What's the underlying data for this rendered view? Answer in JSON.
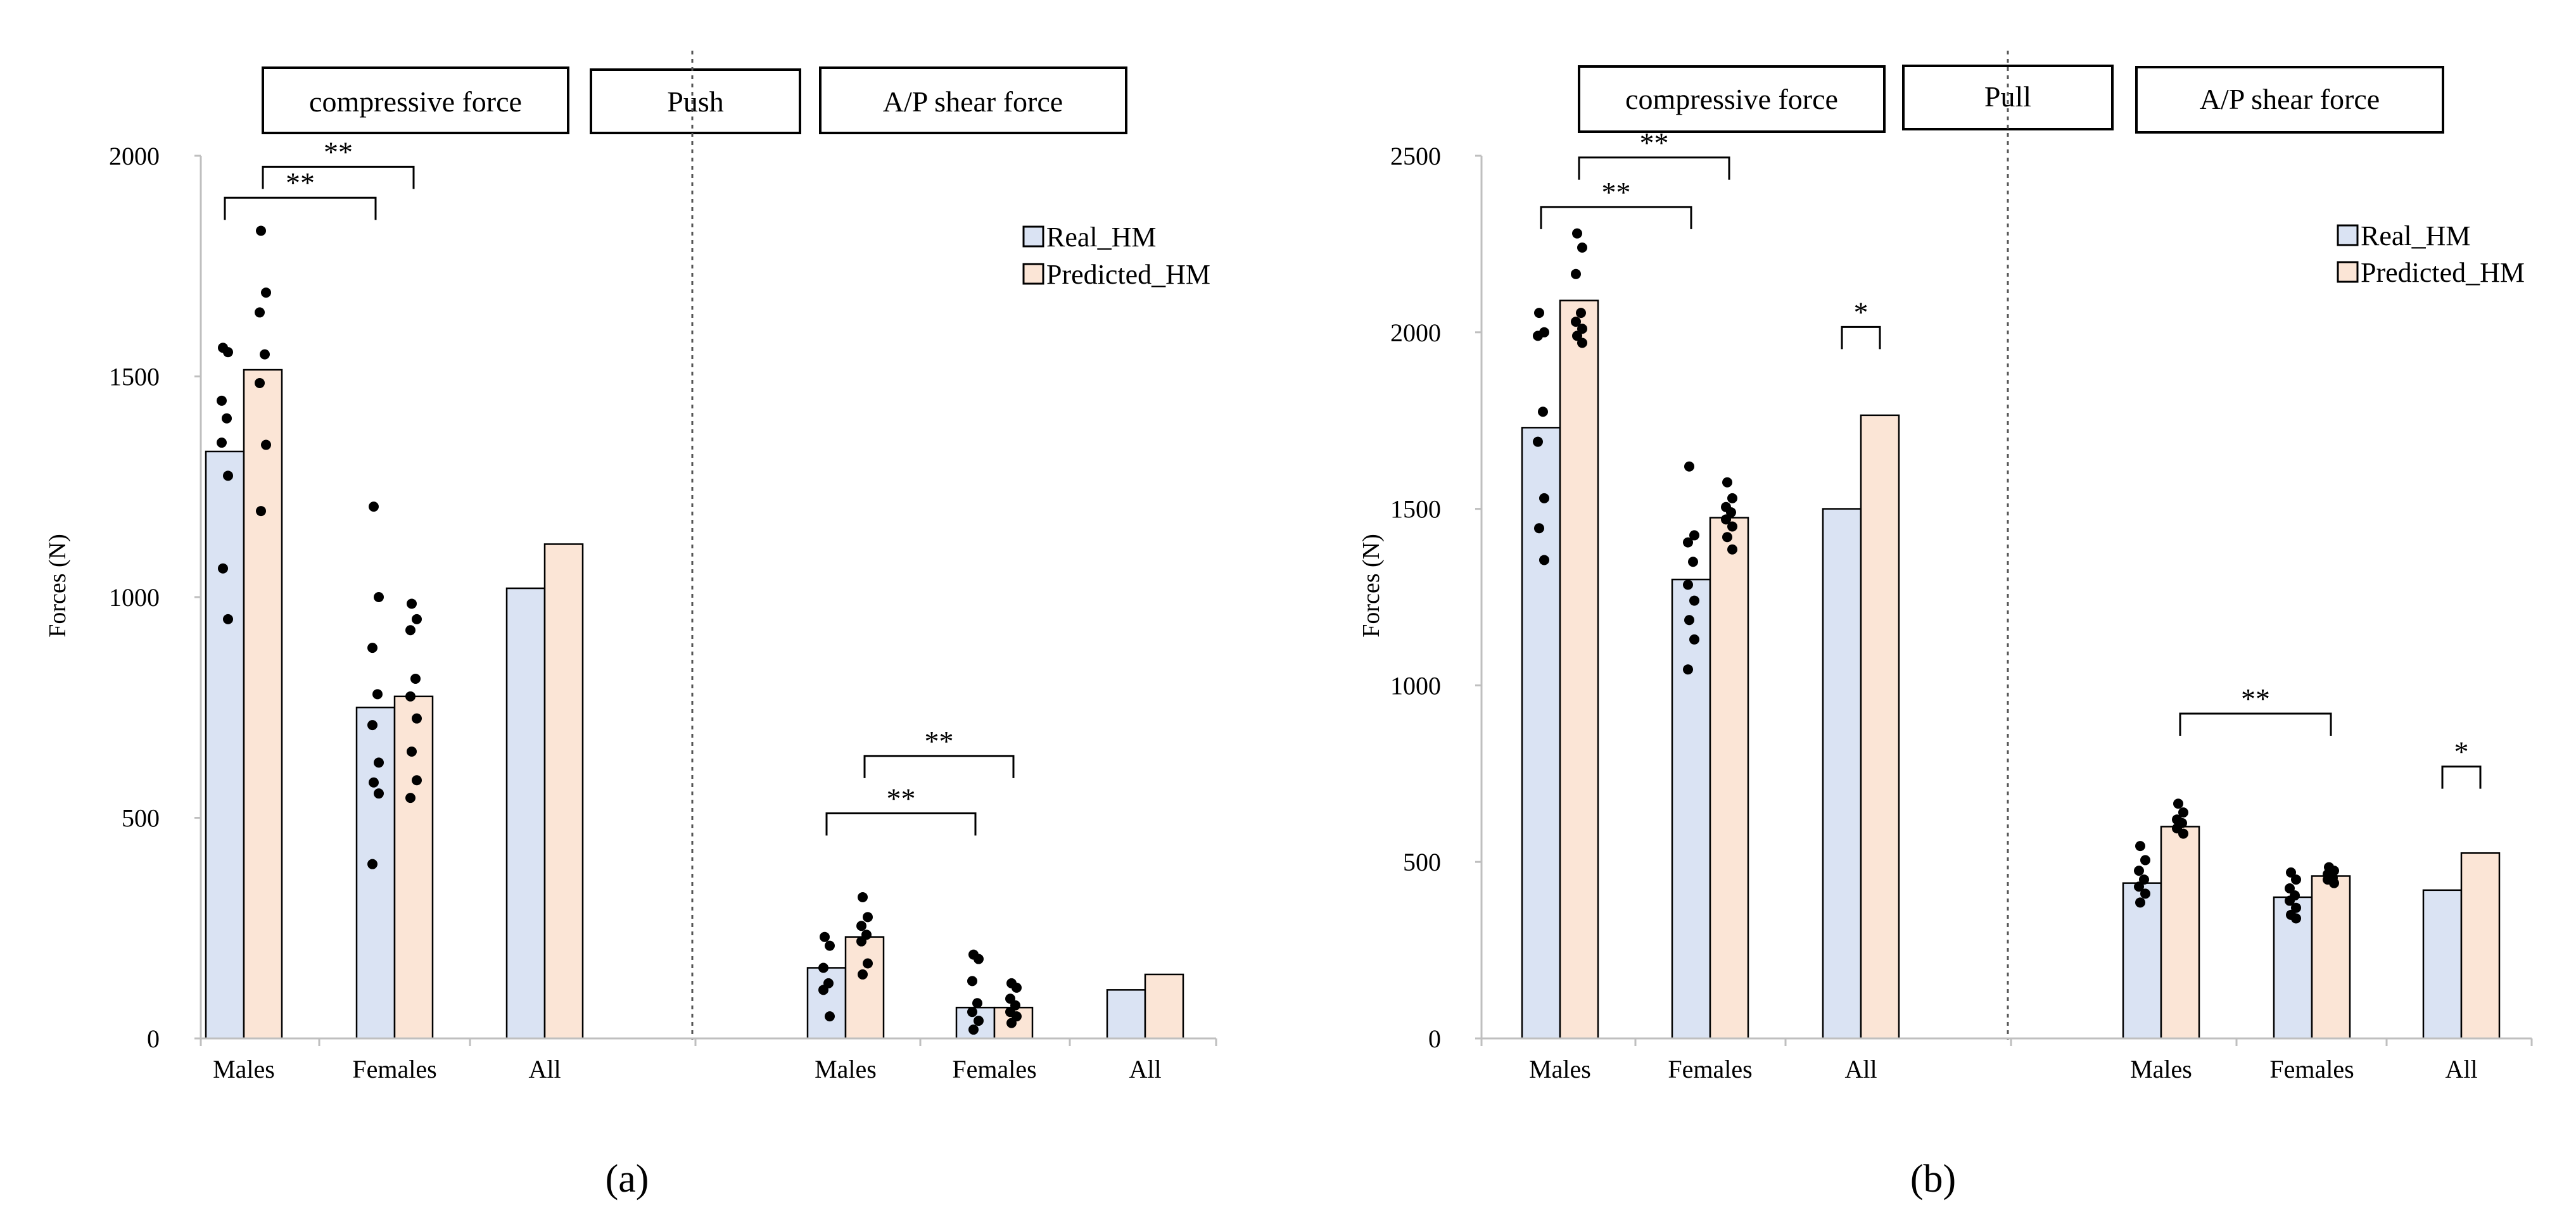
{
  "colors": {
    "real": "#dae3f3",
    "predicted": "#fbe5d6",
    "bar_stroke": "#000000",
    "dot": "#000000",
    "axis": "#bfbfbf"
  },
  "legend": [
    "Real_HM",
    "Predicted_HM"
  ],
  "chart_data": [
    {
      "type": "bar",
      "panel_label": "(a)",
      "ylabel": "Forces (N)",
      "ylim": [
        0,
        2000
      ],
      "yticks": [
        0,
        500,
        1000,
        1500,
        2000
      ],
      "groups": [
        {
          "label": "compressive force",
          "categories": [
            "Males",
            "Females",
            "All"
          ]
        },
        {
          "label": "A/P shear force",
          "categories": [
            "Males",
            "Females",
            "All"
          ]
        }
      ],
      "center_label": "Push",
      "series": [
        {
          "name": "Real_HM",
          "values": [
            1330,
            750,
            1020,
            160,
            70,
            110
          ]
        },
        {
          "name": "Predicted_HM",
          "values": [
            1515,
            775,
            1120,
            230,
            70,
            145
          ]
        }
      ],
      "points": {
        "Real_HM": [
          [
            1565,
            1555,
            1445,
            1405,
            1350,
            1275,
            1065,
            950
          ],
          [
            1205,
            1000,
            885,
            780,
            710,
            625,
            580,
            555,
            395
          ],
          [],
          [
            230,
            210,
            160,
            125,
            110,
            50
          ],
          [
            190,
            180,
            130,
            80,
            60,
            40,
            20
          ],
          []
        ],
        "Predicted_HM": [
          [
            1830,
            1690,
            1645,
            1550,
            1485,
            1345,
            1195
          ],
          [
            985,
            950,
            925,
            815,
            775,
            725,
            650,
            585,
            545
          ],
          [],
          [
            320,
            275,
            255,
            235,
            220,
            170,
            145
          ],
          [
            125,
            115,
            90,
            75,
            60,
            50,
            35
          ],
          []
        ]
      },
      "significance": [
        {
          "label": "**",
          "from": [
            0,
            "Real_HM"
          ],
          "to": [
            1,
            "Real_HM"
          ],
          "y": 1905
        },
        {
          "label": "**",
          "from": [
            0,
            "Predicted_HM"
          ],
          "to": [
            1,
            "Predicted_HM"
          ],
          "y": 1975
        },
        {
          "label": "**",
          "from": [
            3,
            "Real_HM"
          ],
          "to": [
            4,
            "Real_HM"
          ],
          "y": 510
        },
        {
          "label": "**",
          "from": [
            3,
            "Predicted_HM"
          ],
          "to": [
            4,
            "Predicted_HM"
          ],
          "y": 640
        }
      ]
    },
    {
      "type": "bar",
      "panel_label": "(b)",
      "ylabel": "Forces (N)",
      "ylim": [
        0,
        2500
      ],
      "yticks": [
        0,
        500,
        1000,
        1500,
        2000,
        2500
      ],
      "groups": [
        {
          "label": "compressive force",
          "categories": [
            "Males",
            "Females",
            "All"
          ]
        },
        {
          "label": "A/P shear force",
          "categories": [
            "Males",
            "Females",
            "All"
          ]
        }
      ],
      "center_label": "Pull",
      "series": [
        {
          "name": "Real_HM",
          "values": [
            1730,
            1300,
            1500,
            440,
            400,
            420
          ]
        },
        {
          "name": "Predicted_HM",
          "values": [
            2090,
            1475,
            1765,
            600,
            460,
            525
          ]
        }
      ],
      "points": {
        "Real_HM": [
          [
            2055,
            2000,
            1990,
            1775,
            1690,
            1530,
            1445,
            1355
          ],
          [
            1620,
            1425,
            1405,
            1350,
            1285,
            1240,
            1185,
            1130,
            1045
          ],
          [],
          [
            545,
            505,
            475,
            450,
            430,
            410,
            385
          ],
          [
            470,
            450,
            425,
            405,
            390,
            370,
            350,
            340
          ],
          []
        ],
        "Predicted_HM": [
          [
            2280,
            2240,
            2165,
            2055,
            2030,
            2010,
            1990,
            1970
          ],
          [
            1575,
            1530,
            1505,
            1490,
            1470,
            1450,
            1420,
            1385
          ],
          [],
          [
            665,
            640,
            620,
            610,
            595,
            580
          ],
          [
            485,
            475,
            465,
            455,
            450,
            440
          ],
          []
        ]
      },
      "significance": [
        {
          "label": "**",
          "from": [
            0,
            "Real_HM"
          ],
          "to": [
            1,
            "Real_HM"
          ],
          "y": 2355
        },
        {
          "label": "**",
          "from": [
            0,
            "Predicted_HM"
          ],
          "to": [
            1,
            "Predicted_HM"
          ],
          "y": 2495
        },
        {
          "label": "*",
          "from": [
            2,
            "Real_HM"
          ],
          "to": [
            2,
            "Predicted_HM"
          ],
          "y": 2015
        },
        {
          "label": "**",
          "from": [
            3,
            "Predicted_HM"
          ],
          "to": [
            4,
            "Predicted_HM"
          ],
          "y": 920
        },
        {
          "label": "*",
          "from": [
            5,
            "Real_HM"
          ],
          "to": [
            5,
            "Predicted_HM"
          ],
          "y": 770
        }
      ]
    }
  ]
}
